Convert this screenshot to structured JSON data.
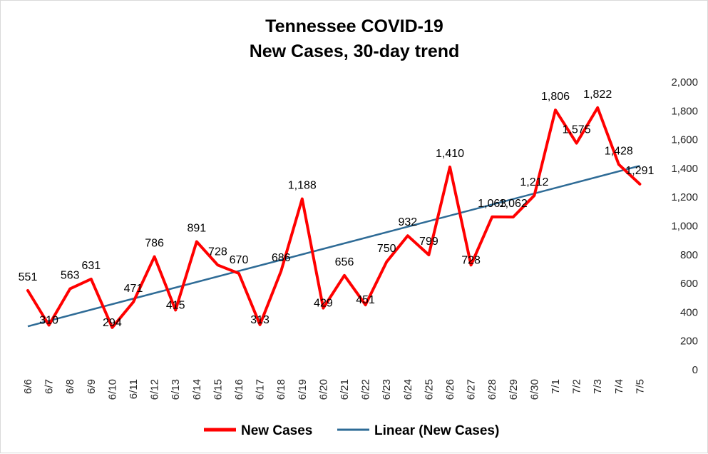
{
  "chart_data": {
    "type": "line",
    "title": "Tennessee COVID-19",
    "subtitle": "New Cases, 30-day trend",
    "xlabel": "",
    "ylabel": "",
    "categories": [
      "6/6",
      "6/7",
      "6/8",
      "6/9",
      "6/10",
      "6/11",
      "6/12",
      "6/13",
      "6/14",
      "6/15",
      "6/16",
      "6/17",
      "6/18",
      "6/19",
      "6/20",
      "6/21",
      "6/22",
      "6/23",
      "6/24",
      "6/25",
      "6/26",
      "6/27",
      "6/28",
      "6/29",
      "6/30",
      "7/1",
      "7/2",
      "7/3",
      "7/4",
      "7/5"
    ],
    "series": [
      {
        "name": "New Cases",
        "color": "#ff0000",
        "values": [
          551,
          310,
          563,
          631,
          294,
          471,
          786,
          415,
          891,
          728,
          670,
          313,
          686,
          1188,
          429,
          656,
          451,
          750,
          932,
          799,
          1410,
          728,
          1063,
          1062,
          1212,
          1806,
          1575,
          1822,
          1428,
          1291
        ],
        "labels": [
          "551",
          "310",
          "563",
          "631",
          "294",
          "471",
          "786",
          "415",
          "891",
          "728",
          "670",
          "313",
          "686",
          "1,188",
          "429",
          "656",
          "451",
          "750",
          "932",
          "799",
          "1,410",
          "728",
          "1,063",
          "1,062",
          "1,212",
          "1,806",
          "1,575",
          "1,822",
          "1,428",
          "1,291"
        ]
      }
    ],
    "trendline": {
      "name": "Linear (New Cases)",
      "color": "#2e6b96",
      "start": 302,
      "end": 1418
    },
    "y_axis": {
      "position": "right",
      "min": 0,
      "max": 2000,
      "step": 200,
      "tick_labels": [
        "0",
        "200",
        "400",
        "600",
        "800",
        "1,000",
        "1,200",
        "1,400",
        "1,600",
        "1,800",
        "2,000"
      ]
    },
    "grid": false,
    "legend": "bottom"
  }
}
